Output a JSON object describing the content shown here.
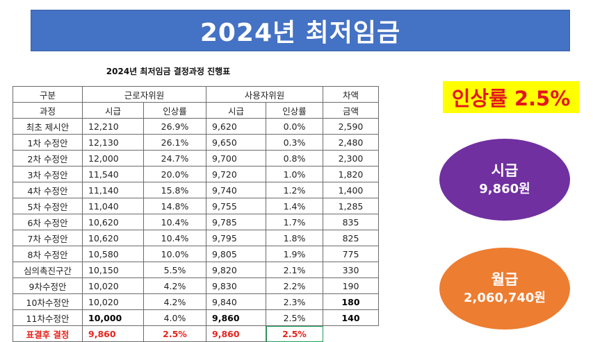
{
  "banner": {
    "title": "2024년 최저임금"
  },
  "table": {
    "title": "2024년 최저임금 결정과정 진행표",
    "group_headers": [
      "구분",
      "근로자위원",
      "사용자위원",
      "차액"
    ],
    "sub_headers": [
      "과정",
      "시급",
      "인상률",
      "시급",
      "인상률",
      "금액"
    ],
    "rows": [
      [
        "최초 제시안",
        "12,210",
        "26.9%",
        "9,620",
        "0.0%",
        "2,590"
      ],
      [
        "1차 수정안",
        "12,130",
        "26.1%",
        "9,650",
        "0.3%",
        "2,480"
      ],
      [
        "2차 수정안",
        "12,000",
        "24.7%",
        "9,700",
        "0.8%",
        "2,300"
      ],
      [
        "3차 수정안",
        "11,540",
        "20.0%",
        "9,720",
        "1.0%",
        "1,820"
      ],
      [
        "4차 수정안",
        "11,140",
        "15.8%",
        "9,740",
        "1.2%",
        "1,400"
      ],
      [
        "5차 수정안",
        "11,040",
        "14.8%",
        "9,755",
        "1.4%",
        "1,285"
      ],
      [
        "6차 수정안",
        "10,620",
        "10.4%",
        "9,785",
        "1.7%",
        "835"
      ],
      [
        "7차 수정안",
        "10,620",
        "10.4%",
        "9,795",
        "1.8%",
        "825"
      ],
      [
        "8차 수정안",
        "10,580",
        "10.0%",
        "9,805",
        "1.9%",
        "775"
      ],
      [
        "심의촉진구간",
        "10,150",
        "5.5%",
        "9,820",
        "2.1%",
        "330"
      ],
      [
        "9차수정안",
        "10,020",
        "4.2%",
        "9,830",
        "2.2%",
        "190"
      ],
      [
        "10차수정안",
        "10,020",
        "4.2%",
        "9,840",
        "2.3%",
        "180"
      ],
      [
        "11차수정안",
        "10,000",
        "4.0%",
        "9,860",
        "2.5%",
        "140"
      ]
    ],
    "final_row": [
      "표결후 결정",
      "9,860",
      "2.5%",
      "9,860",
      "2.5%"
    ]
  },
  "rate_box": {
    "text": "인상률 2.5%"
  },
  "hourly": {
    "label": "시급",
    "value": "9,860원"
  },
  "monthly": {
    "label": "월급",
    "value": "2,060,740원"
  },
  "colors": {
    "banner": "#4472c4",
    "rate_bg": "#ffff00",
    "rate_text": "#e3161b",
    "hourly_bg": "#7030a0",
    "monthly_bg": "#ed7d31",
    "final_row_text": "#e8231d"
  }
}
